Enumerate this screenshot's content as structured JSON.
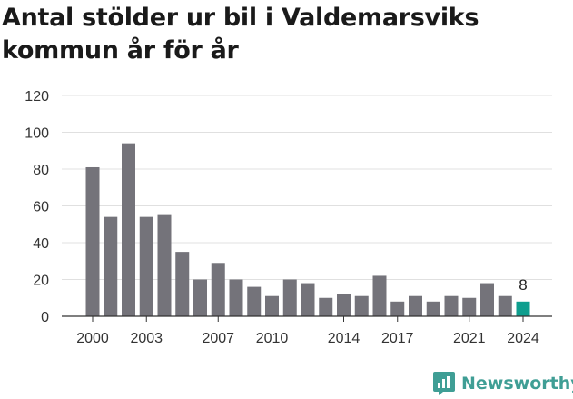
{
  "title": "Antal stölder ur bil i Valdemarsviks kommun år för år",
  "brand": {
    "name": "Newsworthy",
    "icon": "newsworthy-logo-icon",
    "color": "#3f9e95"
  },
  "colors": {
    "bar": "#74737a",
    "highlight": "#0e9e8e",
    "grid": "#e0e0e0",
    "axis": "#333333"
  },
  "chart_data": {
    "type": "bar",
    "title": "Antal stölder ur bil i Valdemarsviks kommun år för år",
    "xlabel": "",
    "ylabel": "",
    "ylim": [
      0,
      120
    ],
    "yticks": [
      0,
      20,
      40,
      60,
      80,
      100,
      120
    ],
    "grid": true,
    "categories": [
      2000,
      2001,
      2002,
      2003,
      2004,
      2005,
      2006,
      2007,
      2008,
      2009,
      2010,
      2011,
      2012,
      2013,
      2014,
      2015,
      2016,
      2017,
      2018,
      2019,
      2020,
      2021,
      2022,
      2023,
      2024
    ],
    "values": [
      81,
      54,
      94,
      54,
      55,
      35,
      20,
      29,
      20,
      16,
      11,
      20,
      18,
      10,
      12,
      11,
      22,
      8,
      11,
      8,
      11,
      10,
      18,
      11,
      8
    ],
    "xticks": [
      2000,
      2003,
      2007,
      2010,
      2014,
      2017,
      2021,
      2024
    ],
    "highlight": {
      "category": 2024,
      "label": "8"
    }
  }
}
